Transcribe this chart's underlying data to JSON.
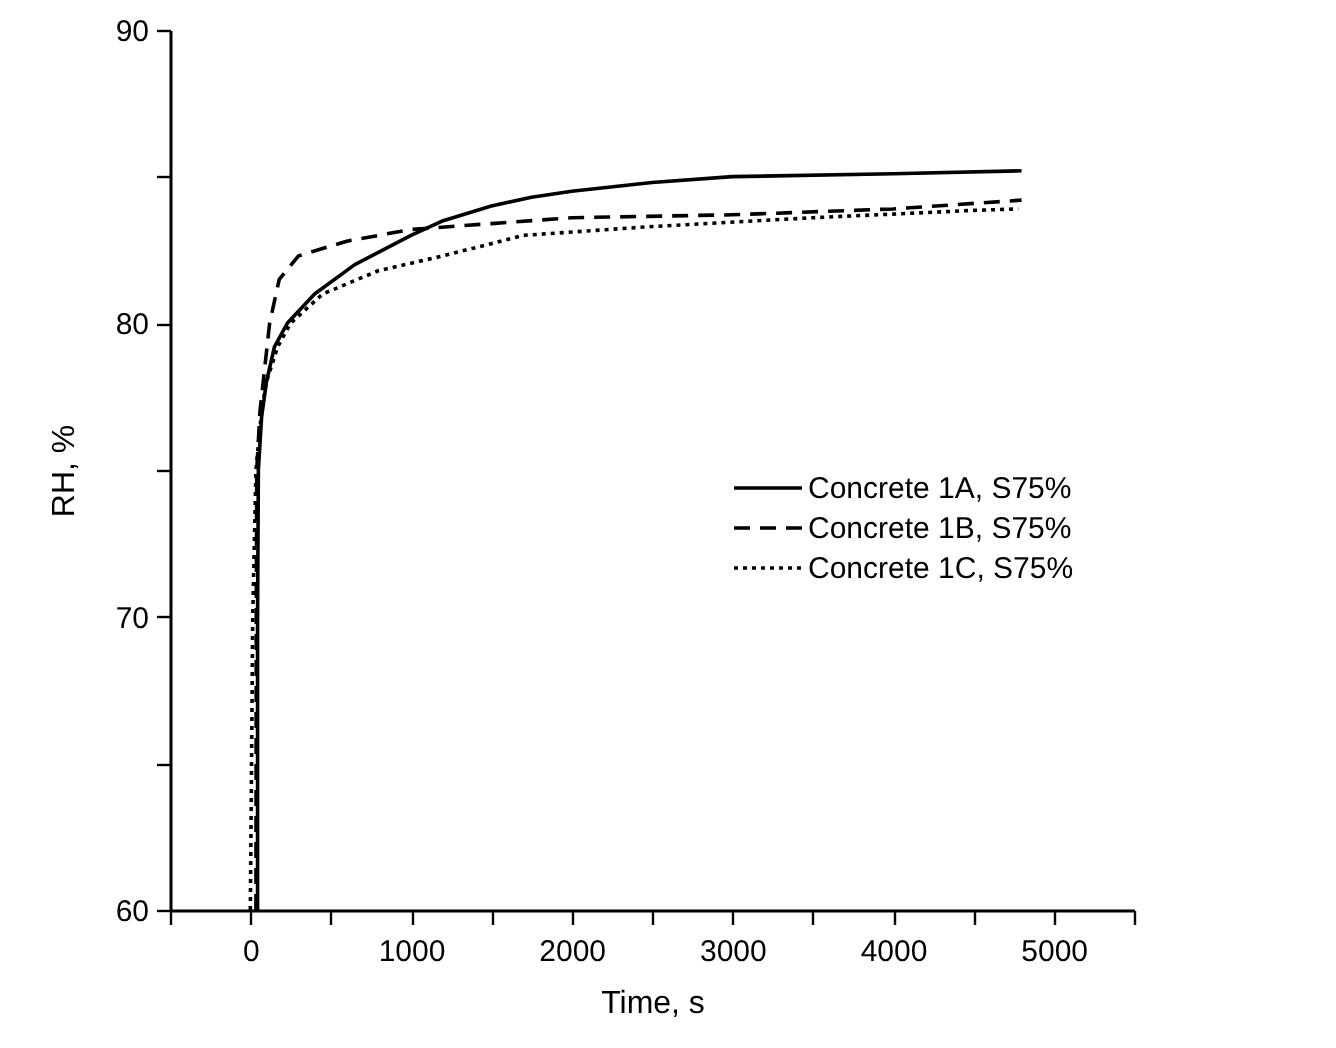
{
  "chart_data": {
    "type": "line",
    "xlabel": "Time, s",
    "ylabel": "RH, %",
    "xlim": [
      -500,
      5500
    ],
    "ylim": [
      60,
      90
    ],
    "xticks": [
      {
        "value": -500,
        "label": null
      },
      0,
      {
        "value": 500,
        "label": null
      },
      1000,
      {
        "value": 1500,
        "label": null
      },
      2000,
      {
        "value": 2500,
        "label": null
      },
      3000,
      {
        "value": 3500,
        "label": null
      },
      4000,
      {
        "value": 4500,
        "label": null
      },
      5000,
      {
        "value": 5500,
        "label": null
      }
    ],
    "yticks": [
      60,
      {
        "value": 65,
        "label": null
      },
      70,
      {
        "value": 75,
        "label": null
      },
      80,
      {
        "value": 85,
        "label": null
      },
      90
    ],
    "grid": false,
    "legend": "right",
    "series": [
      {
        "name": "Concrete 1A, S75%",
        "color": "#000000",
        "line_style": "solid",
        "x": [
          45,
          45,
          50,
          70,
          100,
          150,
          230,
          400,
          650,
          1000,
          1200,
          1500,
          1750,
          2000,
          2500,
          3000,
          4000,
          4800
        ],
        "values": [
          60,
          70,
          75,
          76.8,
          78,
          79.2,
          80,
          81,
          82,
          83,
          83.5,
          84,
          84.3,
          84.5,
          84.8,
          85,
          85.1,
          85.2
        ]
      },
      {
        "name": "Concrete 1B, S75%",
        "color": "#000000",
        "line_style": "dashed",
        "x": [
          35,
          37,
          40,
          60,
          80,
          120,
          180,
          300,
          600,
          1000,
          1500,
          2000,
          3000,
          4000,
          4800
        ],
        "values": [
          60,
          70,
          75,
          77,
          78,
          80,
          81.5,
          82.3,
          82.8,
          83.2,
          83.4,
          83.6,
          83.7,
          83.9,
          84.2
        ]
      },
      {
        "name": "Concrete 1C, S75%",
        "color": "#000000",
        "line_style": "dotted",
        "x": [
          0,
          15,
          35,
          70,
          100,
          170,
          250,
          450,
          800,
          1200,
          1700,
          2500,
          3500,
          4500,
          4780
        ],
        "values": [
          60,
          70,
          75,
          77,
          78,
          79.2,
          80,
          81,
          81.8,
          82.3,
          83,
          83.3,
          83.6,
          83.85,
          83.9
        ]
      }
    ]
  }
}
